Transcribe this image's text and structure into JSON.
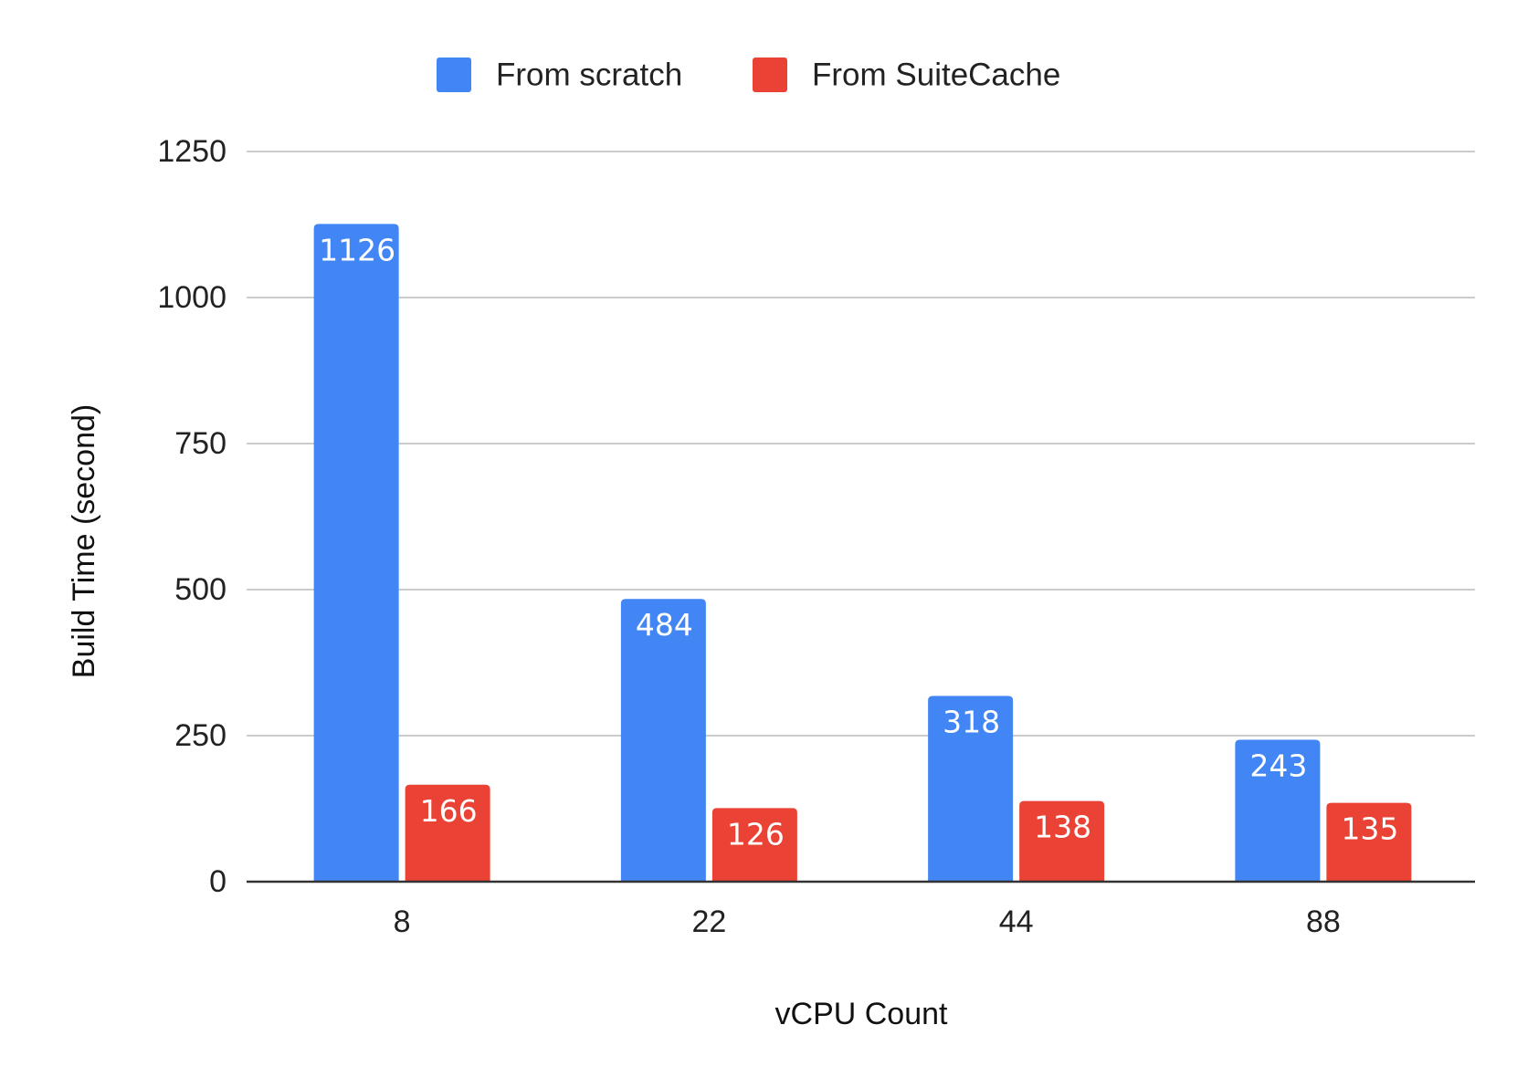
{
  "chart_data": {
    "type": "bar",
    "title": "",
    "xlabel": "vCPU Count",
    "ylabel": "Build Time (second)",
    "categories": [
      "8",
      "22",
      "44",
      "88"
    ],
    "series": [
      {
        "name": "From scratch",
        "color": "#4285f4",
        "values": [
          1126,
          484,
          318,
          243
        ],
        "labels": [
          "1126",
          "484",
          "318",
          "243"
        ]
      },
      {
        "name": "From SuiteCache",
        "color": "#ea4335",
        "values": [
          166,
          126,
          138,
          135
        ],
        "labels": [
          "166",
          "126",
          "138",
          "135"
        ]
      }
    ],
    "ylim": [
      0,
      1250
    ],
    "yticks": [
      "0",
      "250",
      "500",
      "750",
      "1000",
      "1250"
    ],
    "grid": true,
    "legend_position": "top-center"
  }
}
